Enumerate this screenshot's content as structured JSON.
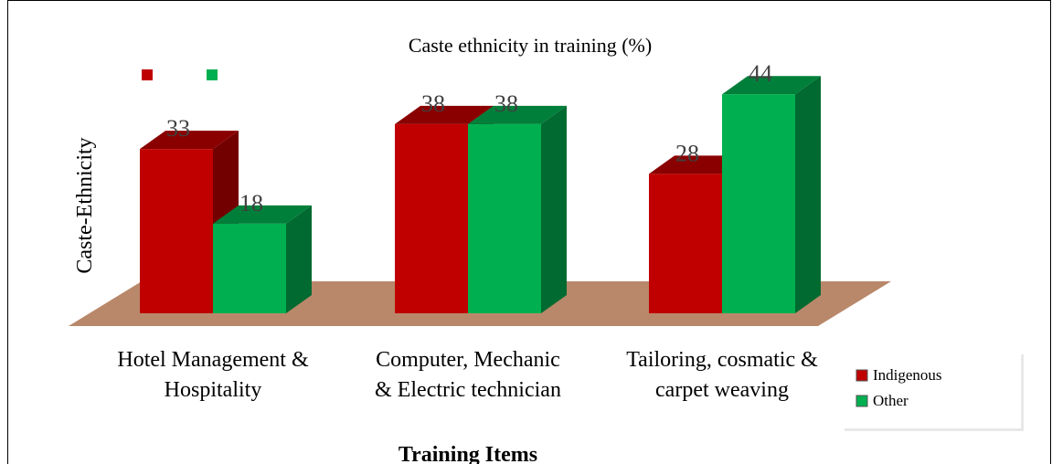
{
  "chart_data": {
    "type": "bar3d",
    "title": "Caste ethnicity in training (%)",
    "y_label": "Caste-Ethnicity",
    "x_label": "Training Items",
    "categories": [
      "Hotel Management &\nHospitality",
      "Computer, Mechanic\n& Electric technician",
      "Tailoring, cosmatic &\ncarpet weaving"
    ],
    "series": [
      {
        "name": "Indigenous",
        "color": "#c00000",
        "values": [
          33,
          38,
          28
        ]
      },
      {
        "name": "Other",
        "color": "#00b050",
        "values": [
          18,
          38,
          44
        ]
      }
    ]
  }
}
